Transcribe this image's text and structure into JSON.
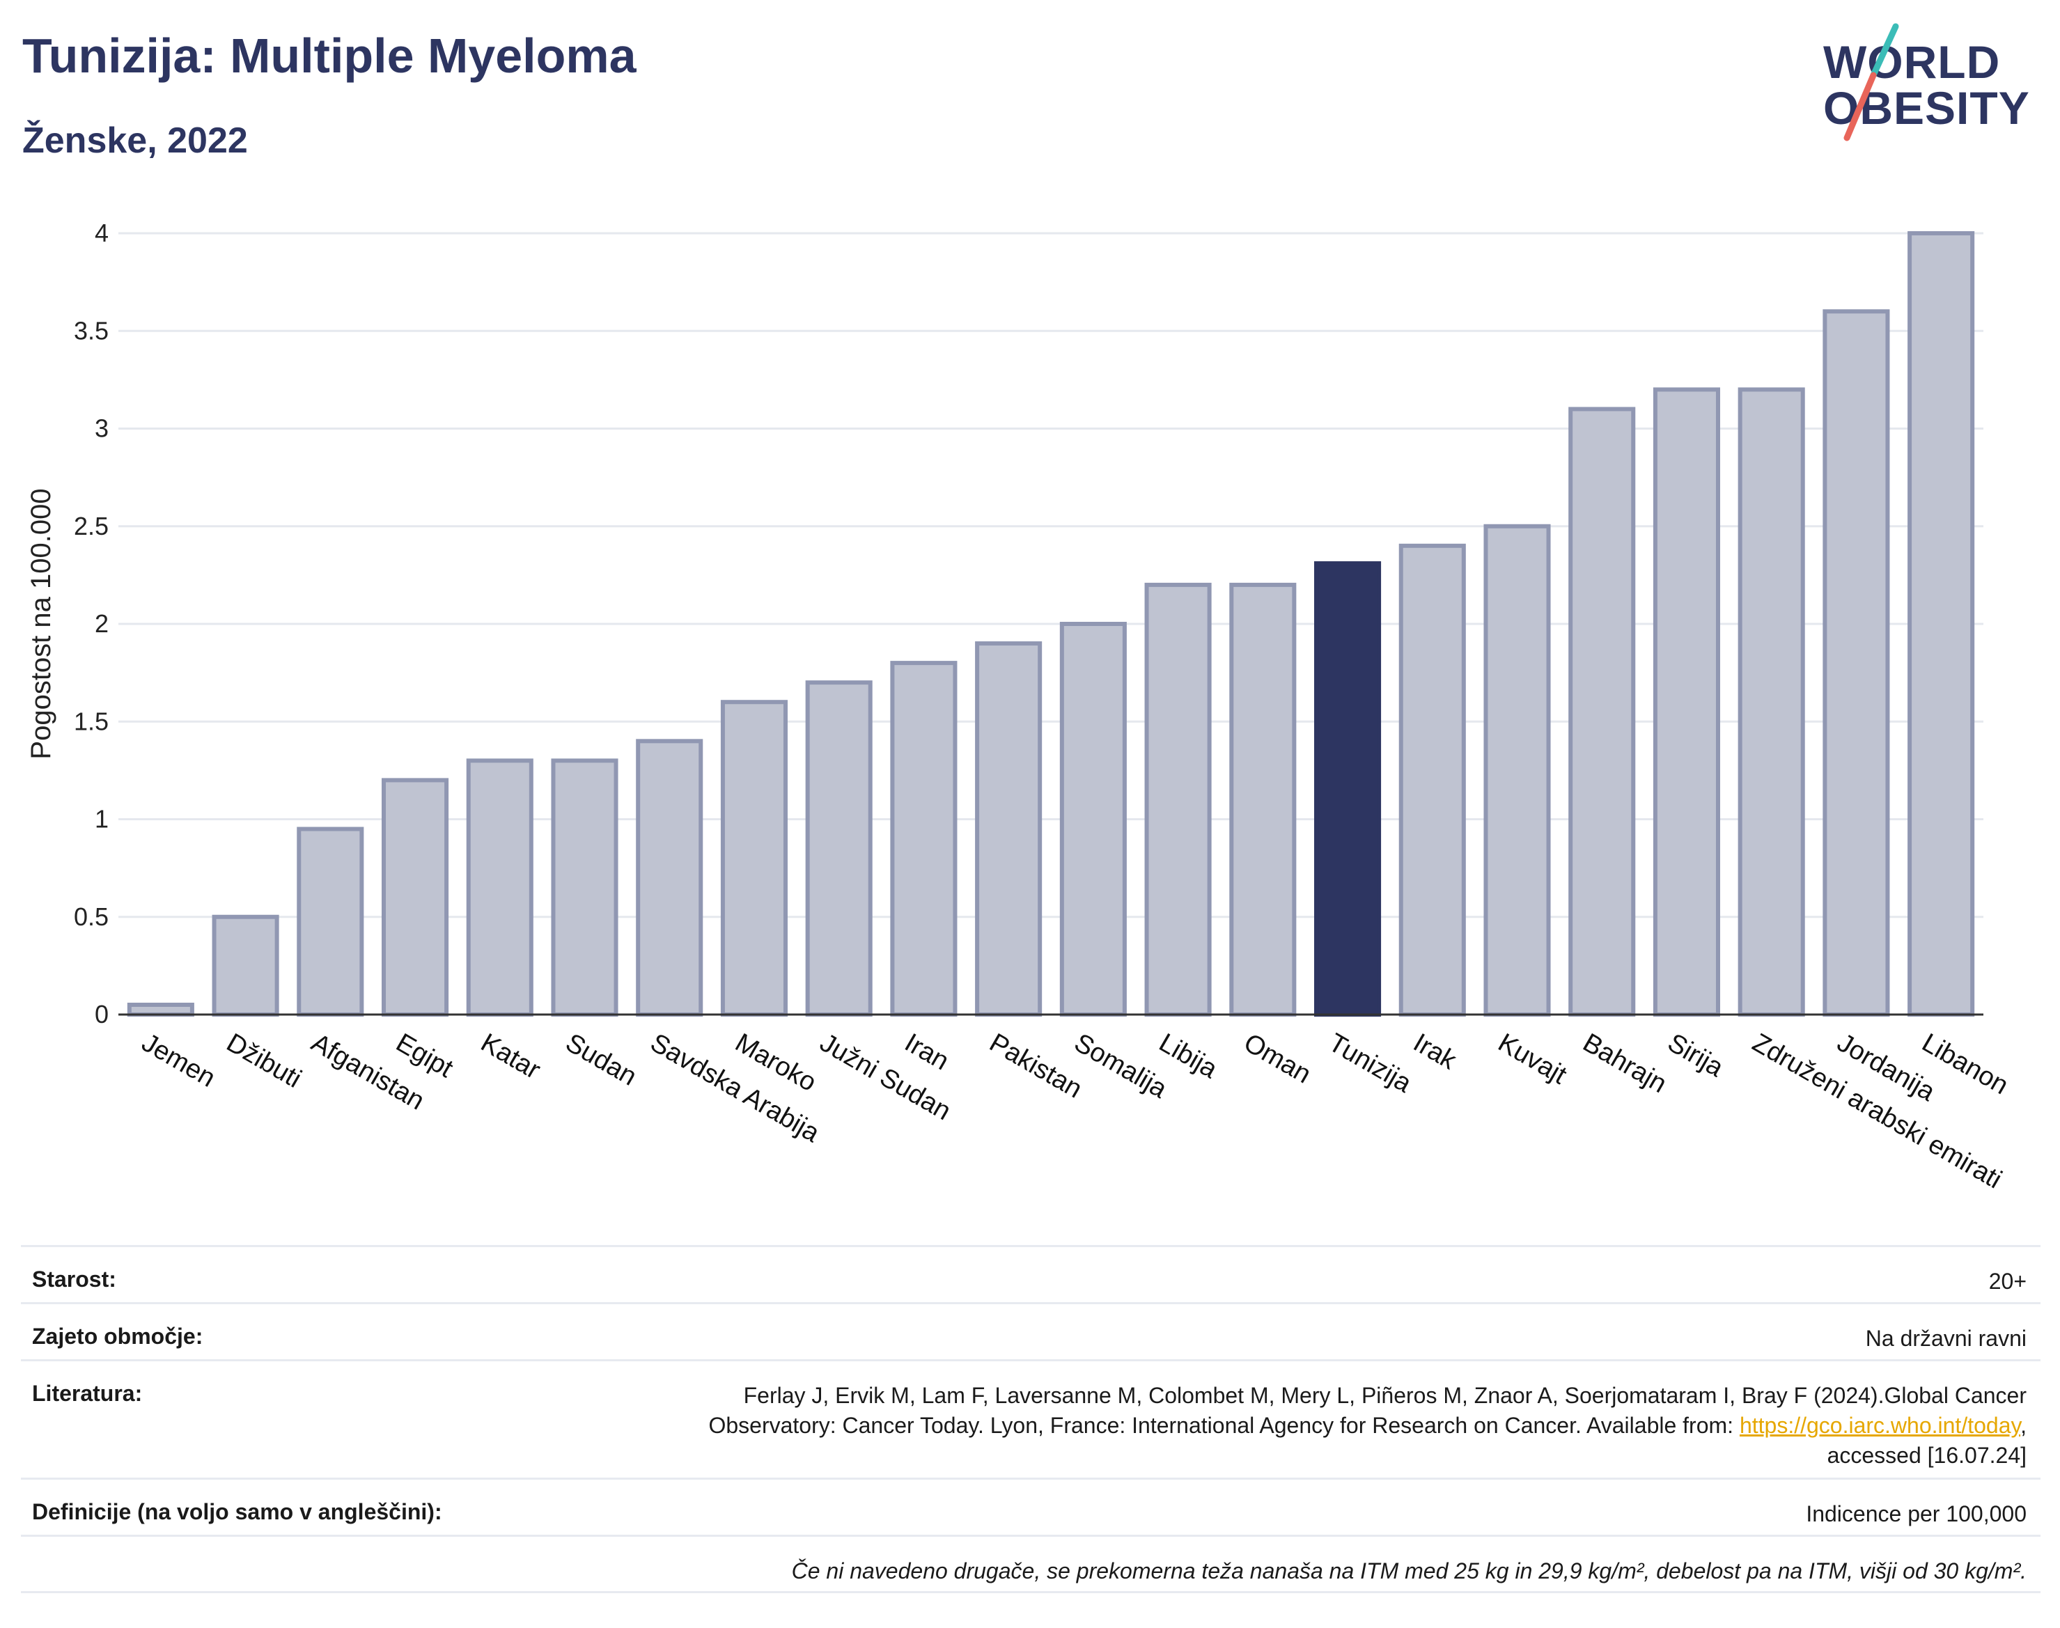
{
  "header": {
    "title": "Tunizija: Multiple Myeloma",
    "subtitle": "Ženske, 2022"
  },
  "logo": {
    "line1": "WORLD",
    "line2": "OBESITY"
  },
  "colors": {
    "bar": "#bfc3d1",
    "bar_border": "#9097b2",
    "highlight": "#2d3561",
    "text_dark": "#2d3561",
    "link": "#e6a700",
    "logo_teal": "#3bbcb7",
    "logo_red": "#e8655a"
  },
  "chart_data": {
    "type": "bar",
    "ylabel": "Pogostost na 100.000",
    "ylim": [
      0,
      4
    ],
    "yticks": [
      0,
      0.5,
      1,
      1.5,
      2,
      2.5,
      3,
      3.5,
      4
    ],
    "ytick_labels": [
      "0",
      "0.5",
      "1",
      "1.5",
      "2",
      "2.5",
      "3",
      "3.5",
      "4"
    ],
    "grid": true,
    "highlight": "Tunizija",
    "categories": [
      "Jemen",
      "Džibuti",
      "Afganistan",
      "Egipt",
      "Katar",
      "Sudan",
      "Savdska Arabija",
      "Maroko",
      "Južni Sudan",
      "Iran",
      "Pakistan",
      "Somalija",
      "Libija",
      "Oman",
      "Tunizija",
      "Irak",
      "Kuvajt",
      "Bahrajn",
      "Sirija",
      "Združeni arabski emirati",
      "Jordanija",
      "Libanon"
    ],
    "values": [
      0.05,
      0.5,
      0.95,
      1.2,
      1.3,
      1.3,
      1.4,
      1.6,
      1.7,
      1.8,
      1.9,
      2.0,
      2.2,
      2.2,
      2.31,
      2.4,
      2.5,
      3.1,
      3.2,
      3.2,
      3.6,
      4.0
    ]
  },
  "info": {
    "age_label": "Starost:",
    "age_value": "20+",
    "coverage_label": "Zajeto območje:",
    "coverage_value": "Na državni ravni",
    "literature_label": "Literatura:",
    "literature_line1": "Ferlay J, Ervik M, Lam F, Laversanne M, Colombet M, Mery L, Piñeros M, Znaor A, Soerjomataram I, Bray F (2024).Global Cancer",
    "literature_line2": "Observatory: Cancer Today. Lyon, France: International Agency for Research on Cancer. Available from: ",
    "literature_link": "https://gco.iarc.who.int/today",
    "literature_line2_end": ",",
    "literature_line3": "accessed [16.07.24]",
    "definitions_label": "Definicije (na voljo samo v angleščini):",
    "definitions_value": "Indicence per 100,000",
    "footnote": "Če ni navedeno drugače, se prekomerna teža nanaša na ITM med 25 kg in 29,9 kg/m², debelost pa na ITM, višji od 30 kg/m²."
  }
}
